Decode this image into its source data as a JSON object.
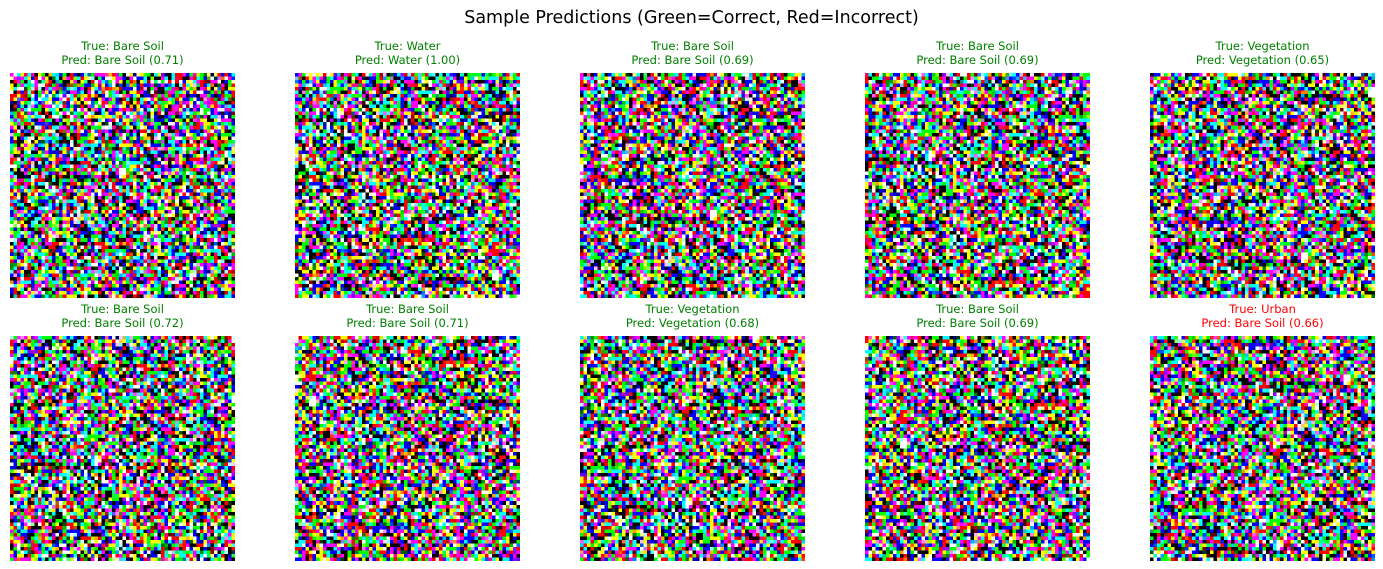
{
  "figure": {
    "title": "Sample Predictions (Green=Correct, Red=Incorrect)",
    "colors": {
      "correct": "#008000",
      "incorrect": "#ff0000"
    }
  },
  "panels": [
    {
      "true_label": "True: Bare Soil",
      "pred_label": "Pred: Bare Soil (0.71)",
      "correct": true
    },
    {
      "true_label": "True: Water",
      "pred_label": "Pred: Water (1.00)",
      "correct": true
    },
    {
      "true_label": "True: Bare Soil",
      "pred_label": "Pred: Bare Soil (0.69)",
      "correct": true
    },
    {
      "true_label": "True: Bare Soil",
      "pred_label": "Pred: Bare Soil (0.69)",
      "correct": true
    },
    {
      "true_label": "True: Vegetation",
      "pred_label": "Pred: Vegetation (0.65)",
      "correct": true
    },
    {
      "true_label": "True: Bare Soil",
      "pred_label": "Pred: Bare Soil (0.72)",
      "correct": true
    },
    {
      "true_label": "True: Bare Soil",
      "pred_label": "Pred: Bare Soil (0.71)",
      "correct": true
    },
    {
      "true_label": "True: Vegetation",
      "pred_label": "Pred: Vegetation (0.68)",
      "correct": true
    },
    {
      "true_label": "True: Bare Soil",
      "pred_label": "Pred: Bare Soil (0.69)",
      "correct": true
    },
    {
      "true_label": "True: Urban",
      "pred_label": "Pred: Bare Soil (0.66)",
      "correct": false
    }
  ]
}
